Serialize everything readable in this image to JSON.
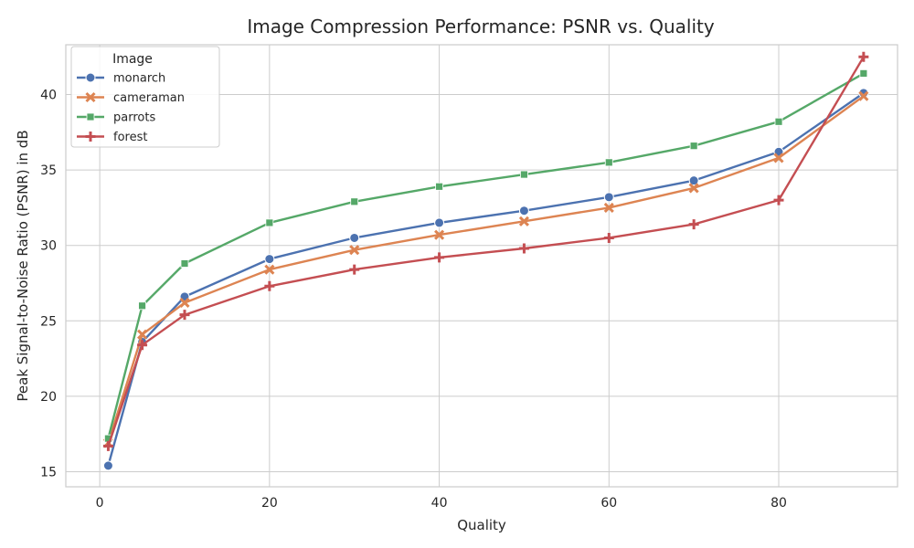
{
  "chart_data": {
    "type": "line",
    "title": "Image Compression Performance: PSNR vs. Quality",
    "xlabel": "Quality",
    "ylabel": "Peak Signal-to-Noise Ratio (PSNR) in dB",
    "xlim": [
      -4,
      94
    ],
    "ylim": [
      14,
      43.3
    ],
    "xticks": [
      0,
      20,
      40,
      60,
      80
    ],
    "yticks": [
      15,
      20,
      25,
      30,
      35,
      40
    ],
    "grid": true,
    "legend": {
      "title": "Image",
      "position": "top-left"
    },
    "x": [
      1,
      5,
      10,
      20,
      30,
      40,
      50,
      60,
      70,
      80,
      90
    ],
    "series": [
      {
        "name": "monarch",
        "color": "#4c72b0",
        "marker": "circle",
        "values": [
          15.4,
          23.6,
          26.6,
          29.1,
          30.5,
          31.5,
          32.3,
          33.2,
          34.3,
          36.2,
          40.1
        ]
      },
      {
        "name": "cameraman",
        "color": "#dd8452",
        "marker": "x",
        "values": [
          16.9,
          24.1,
          26.2,
          28.4,
          29.7,
          30.7,
          31.6,
          32.5,
          33.8,
          35.8,
          39.9
        ]
      },
      {
        "name": "parrots",
        "color": "#55a868",
        "marker": "square",
        "values": [
          17.2,
          26.0,
          28.8,
          31.5,
          32.9,
          33.9,
          34.7,
          35.5,
          36.6,
          38.2,
          41.4
        ]
      },
      {
        "name": "forest",
        "color": "#c44e52",
        "marker": "plus",
        "values": [
          16.7,
          23.4,
          25.4,
          27.3,
          28.4,
          29.2,
          29.8,
          30.5,
          31.4,
          33.0,
          42.5
        ]
      }
    ]
  }
}
